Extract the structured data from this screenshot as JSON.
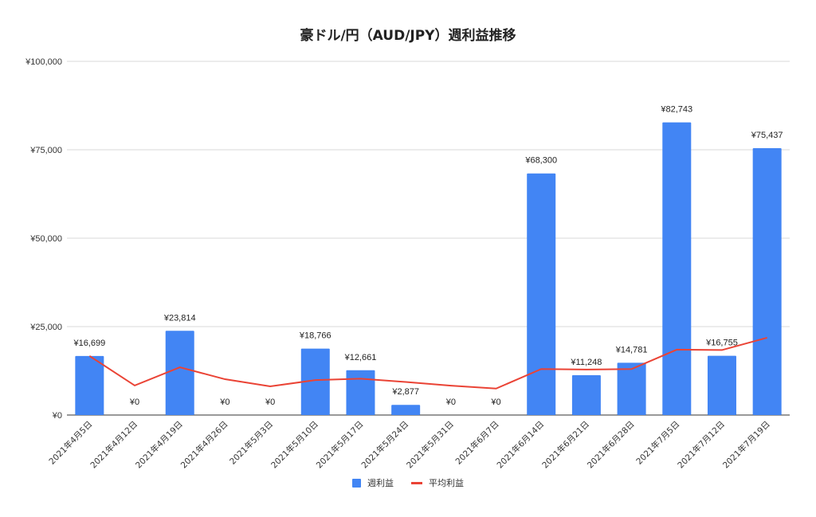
{
  "chart_data": {
    "type": "bar",
    "title": "豪ドル/円（AUD/JPY）週利益推移",
    "xlabel": "",
    "ylabel": "",
    "ylim": [
      0,
      100000
    ],
    "yticks": [
      0,
      25000,
      50000,
      75000,
      100000
    ],
    "ytick_labels": [
      "¥0",
      "¥25,000",
      "¥50,000",
      "¥75,000",
      "¥100,000"
    ],
    "grid": true,
    "legend_position": "bottom",
    "categories": [
      "2021年4月5日",
      "2021年4月12日",
      "2021年4月19日",
      "2021年4月26日",
      "2021年5月3日",
      "2021年5月10日",
      "2021年5月17日",
      "2021年5月24日",
      "2021年5月31日",
      "2021年6月7日",
      "2021年6月14日",
      "2021年6月21日",
      "2021年6月28日",
      "2021年7月5日",
      "2021年7月12日",
      "2021年7月19日"
    ],
    "series": [
      {
        "name": "週利益",
        "type": "bar",
        "color": "#4285f4",
        "values": [
          16699,
          0,
          23814,
          0,
          0,
          18766,
          12661,
          2877,
          0,
          0,
          68300,
          11248,
          14781,
          82743,
          16755,
          75437
        ],
        "data_labels": [
          "¥16,699",
          "¥0",
          "¥23,814",
          "¥0",
          "¥0",
          "¥18,766",
          "¥12,661",
          "¥2,877",
          "¥0",
          "¥0",
          "¥68,300",
          "¥11,248",
          "¥14,781",
          "¥82,743",
          "¥16,755",
          "¥75,437"
        ]
      },
      {
        "name": "平均利益",
        "type": "line",
        "color": "#ea4335",
        "values": [
          16699,
          8350,
          13504,
          10128,
          8102,
          9879,
          10276,
          9351,
          8312,
          7481,
          13010,
          12863,
          13010,
          18490,
          18373,
          21867
        ]
      }
    ]
  },
  "legend": [
    {
      "label": "週利益",
      "color": "#4285f4",
      "kind": "bar"
    },
    {
      "label": "平均利益",
      "color": "#ea4335",
      "kind": "line"
    }
  ]
}
